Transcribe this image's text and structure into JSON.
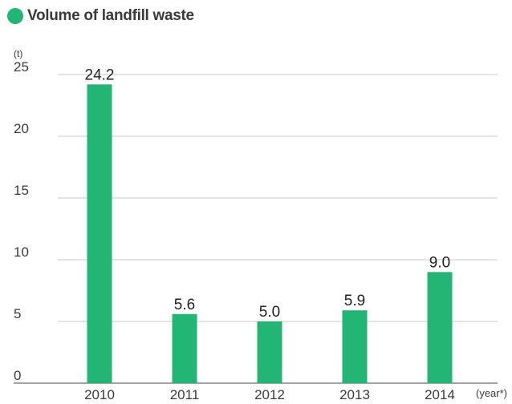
{
  "chart_data": {
    "type": "bar",
    "title": "Volume of landfill waste",
    "ylabel": "(t)",
    "xlabel": "(year*)",
    "categories": [
      "2010",
      "2011",
      "2012",
      "2013",
      "2014"
    ],
    "values": [
      24.2,
      5.6,
      5.0,
      5.9,
      9.0
    ],
    "value_labels": [
      "24.2",
      "5.6",
      "5.0",
      "5.9",
      "9.0"
    ],
    "yticks": [
      "0",
      "5",
      "10",
      "15",
      "20",
      "25"
    ],
    "ylim": [
      0,
      25
    ],
    "grid": true,
    "bar_color": "#22b573",
    "title_dot_color": "#22b573"
  }
}
